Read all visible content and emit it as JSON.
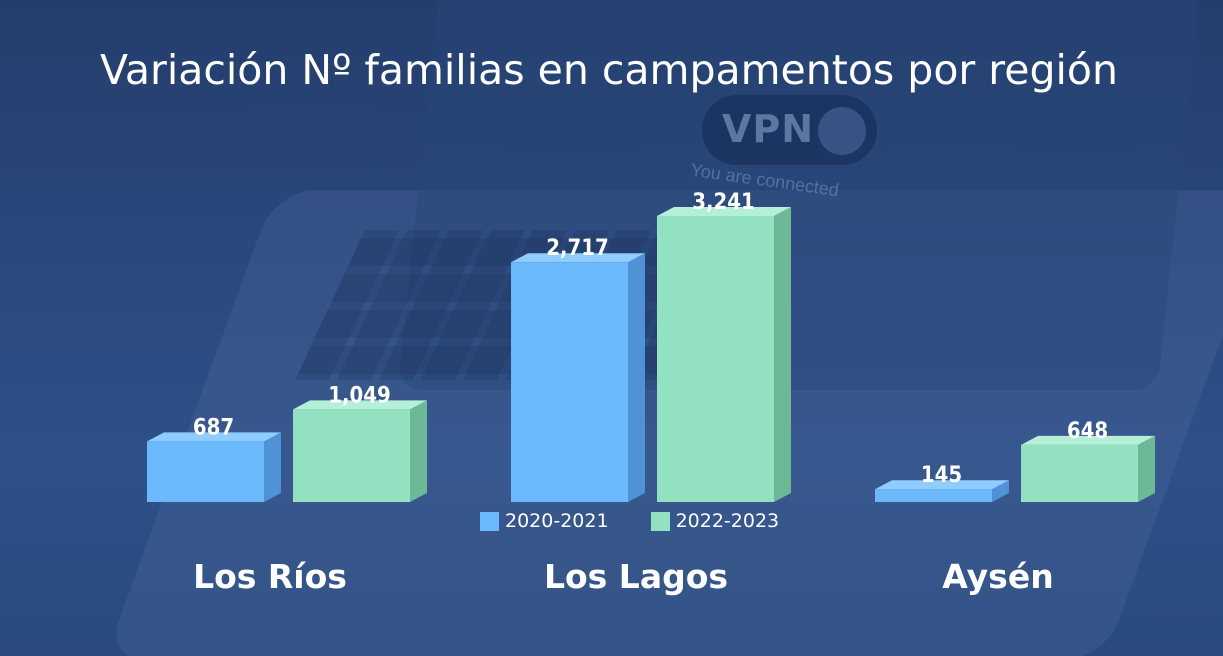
{
  "background": {
    "pill_text": "VPN",
    "status_text": "You are connected"
  },
  "chart_data": {
    "type": "bar",
    "title": "Variación Nº familias en campamentos por región",
    "categories": [
      "Los Ríos",
      "Los Lagos",
      "Aysén"
    ],
    "series": [
      {
        "name": "2020-2021",
        "values": [
          687,
          2717,
          145
        ],
        "labels": [
          "687",
          "2,717",
          "145"
        ],
        "color": "#6bb9fb"
      },
      {
        "name": "2022-2023",
        "values": [
          1049,
          3241,
          648
        ],
        "labels": [
          "1,049",
          "3,241",
          "648"
        ],
        "color": "#92e2c2"
      }
    ],
    "ylim": [
      0,
      3241
    ],
    "grid": false,
    "legend": "bottom-center"
  }
}
